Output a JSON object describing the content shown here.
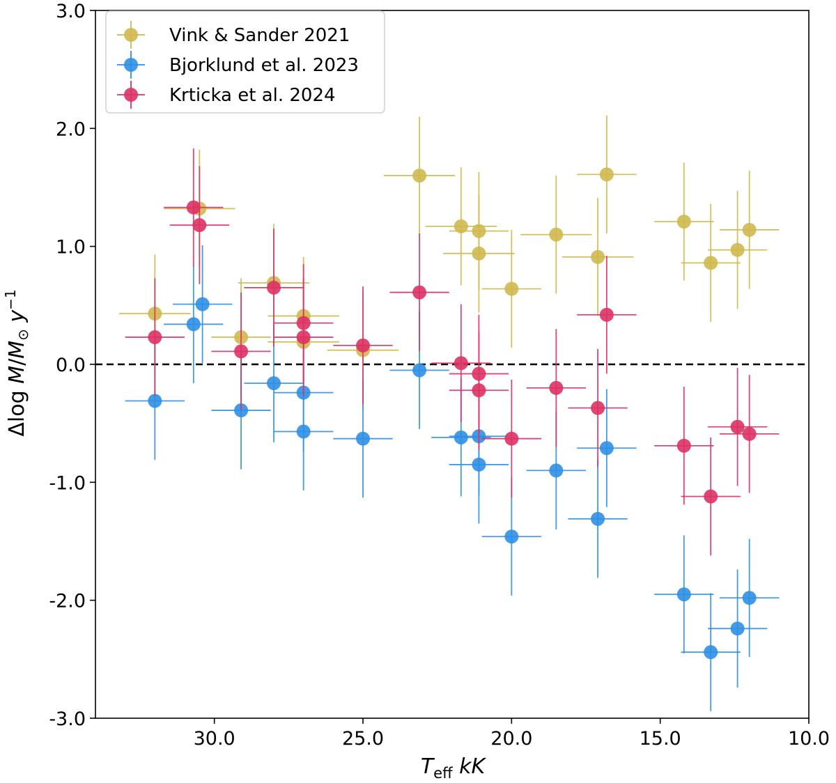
{
  "chart_data": {
    "type": "scatter",
    "title": "",
    "xlabel": {
      "main": "T",
      "sub": "eff",
      "unit": " kK"
    },
    "ylabel": {
      "prefix": "Δlog ",
      "mdot": "M",
      "slash": "/",
      "msun": "M",
      "sun_symbol": "⊙",
      "unit": " y",
      "exp": "−1"
    },
    "xlim": [
      34.0,
      10.0
    ],
    "ylim": [
      -3.0,
      3.0
    ],
    "x_ticks": [
      30.0,
      25.0,
      20.0,
      15.0,
      10.0
    ],
    "x_tick_labels": [
      "30.0",
      "25.0",
      "20.0",
      "15.0",
      "10.0"
    ],
    "y_ticks": [
      -3.0,
      -2.0,
      -1.0,
      0.0,
      1.0,
      2.0,
      3.0
    ],
    "y_tick_labels": [
      "-3.0",
      "-2.0",
      "-1.0",
      "0.0",
      "1.0",
      "2.0",
      "3.0"
    ],
    "reference_line": {
      "y": 0.0,
      "style": "dashed",
      "color": "#000000"
    },
    "legend_position": "upper-left",
    "series": [
      {
        "name": "Vink & Sander 2021",
        "color": "#cfb94f",
        "points": [
          {
            "x": 32.0,
            "y": 0.43,
            "xerr": 1.2,
            "yerr": 0.5
          },
          {
            "x": 30.5,
            "y": 1.32,
            "xerr": 1.2,
            "yerr": 0.5
          },
          {
            "x": 29.1,
            "y": 0.23,
            "xerr": 1.0,
            "yerr": 0.5
          },
          {
            "x": 28.0,
            "y": 0.69,
            "xerr": 1.2,
            "yerr": 0.5
          },
          {
            "x": 27.0,
            "y": 0.41,
            "xerr": 1.2,
            "yerr": 0.5
          },
          {
            "x": 27.0,
            "y": 0.19,
            "xerr": 1.2,
            "yerr": 0.5
          },
          {
            "x": 25.0,
            "y": 0.12,
            "xerr": 1.2,
            "yerr": 0.5
          },
          {
            "x": 23.1,
            "y": 1.6,
            "xerr": 1.2,
            "yerr": 0.5
          },
          {
            "x": 21.7,
            "y": 1.17,
            "xerr": 1.2,
            "yerr": 0.5
          },
          {
            "x": 21.1,
            "y": 1.13,
            "xerr": 1.0,
            "yerr": 0.5
          },
          {
            "x": 21.1,
            "y": 0.94,
            "xerr": 1.2,
            "yerr": 0.5
          },
          {
            "x": 20.0,
            "y": 0.64,
            "xerr": 1.0,
            "yerr": 0.5
          },
          {
            "x": 18.5,
            "y": 1.1,
            "xerr": 1.2,
            "yerr": 0.5
          },
          {
            "x": 17.1,
            "y": 0.91,
            "xerr": 1.2,
            "yerr": 0.5
          },
          {
            "x": 16.8,
            "y": 1.61,
            "xerr": 1.0,
            "yerr": 0.5
          },
          {
            "x": 14.2,
            "y": 1.21,
            "xerr": 1.0,
            "yerr": 0.5
          },
          {
            "x": 13.3,
            "y": 0.86,
            "xerr": 1.0,
            "yerr": 0.5
          },
          {
            "x": 12.4,
            "y": 0.97,
            "xerr": 1.0,
            "yerr": 0.5
          },
          {
            "x": 12.0,
            "y": 1.14,
            "xerr": 1.0,
            "yerr": 0.5
          }
        ]
      },
      {
        "name": "Bjorklund et al. 2023",
        "color": "#2f8fe3",
        "points": [
          {
            "x": 32.0,
            "y": -0.31,
            "xerr": 1.0,
            "yerr": 0.5
          },
          {
            "x": 30.7,
            "y": 0.34,
            "xerr": 1.0,
            "yerr": 0.5
          },
          {
            "x": 30.4,
            "y": 0.51,
            "xerr": 1.0,
            "yerr": 0.5
          },
          {
            "x": 29.1,
            "y": -0.39,
            "xerr": 1.0,
            "yerr": 0.5
          },
          {
            "x": 28.0,
            "y": -0.16,
            "xerr": 1.0,
            "yerr": 0.5
          },
          {
            "x": 27.0,
            "y": -0.24,
            "xerr": 1.0,
            "yerr": 0.5
          },
          {
            "x": 27.0,
            "y": -0.57,
            "xerr": 1.0,
            "yerr": 0.5
          },
          {
            "x": 25.0,
            "y": -0.63,
            "xerr": 1.0,
            "yerr": 0.5
          },
          {
            "x": 23.1,
            "y": -0.05,
            "xerr": 1.0,
            "yerr": 0.5
          },
          {
            "x": 21.7,
            "y": -0.62,
            "xerr": 1.0,
            "yerr": 0.5
          },
          {
            "x": 21.1,
            "y": -0.61,
            "xerr": 1.0,
            "yerr": 0.5
          },
          {
            "x": 21.1,
            "y": -0.85,
            "xerr": 1.0,
            "yerr": 0.5
          },
          {
            "x": 20.0,
            "y": -1.46,
            "xerr": 1.0,
            "yerr": 0.5
          },
          {
            "x": 18.5,
            "y": -0.9,
            "xerr": 1.0,
            "yerr": 0.5
          },
          {
            "x": 17.1,
            "y": -1.31,
            "xerr": 1.0,
            "yerr": 0.5
          },
          {
            "x": 16.8,
            "y": -0.71,
            "xerr": 1.0,
            "yerr": 0.5
          },
          {
            "x": 14.2,
            "y": -1.95,
            "xerr": 1.0,
            "yerr": 0.5
          },
          {
            "x": 13.3,
            "y": -2.44,
            "xerr": 1.0,
            "yerr": 0.5
          },
          {
            "x": 12.4,
            "y": -2.24,
            "xerr": 1.0,
            "yerr": 0.5
          },
          {
            "x": 12.0,
            "y": -1.98,
            "xerr": 1.0,
            "yerr": 0.5
          }
        ]
      },
      {
        "name": "Krticka et al. 2024",
        "color": "#dc3265",
        "points": [
          {
            "x": 32.0,
            "y": 0.23,
            "xerr": 1.0,
            "yerr": 0.5
          },
          {
            "x": 30.7,
            "y": 1.33,
            "xerr": 1.0,
            "yerr": 0.5
          },
          {
            "x": 30.5,
            "y": 1.18,
            "xerr": 1.0,
            "yerr": 0.5
          },
          {
            "x": 29.1,
            "y": 0.11,
            "xerr": 1.0,
            "yerr": 0.5
          },
          {
            "x": 28.0,
            "y": 0.65,
            "xerr": 1.0,
            "yerr": 0.5
          },
          {
            "x": 27.0,
            "y": 0.35,
            "xerr": 1.0,
            "yerr": 0.5
          },
          {
            "x": 27.0,
            "y": 0.23,
            "xerr": 1.0,
            "yerr": 0.5
          },
          {
            "x": 25.0,
            "y": 0.16,
            "xerr": 1.0,
            "yerr": 0.5
          },
          {
            "x": 23.1,
            "y": 0.61,
            "xerr": 1.0,
            "yerr": 0.5
          },
          {
            "x": 21.7,
            "y": 0.01,
            "xerr": 1.0,
            "yerr": 0.5
          },
          {
            "x": 21.1,
            "y": -0.08,
            "xerr": 1.0,
            "yerr": 0.5
          },
          {
            "x": 21.1,
            "y": -0.22,
            "xerr": 1.0,
            "yerr": 0.5
          },
          {
            "x": 20.0,
            "y": -0.63,
            "xerr": 1.0,
            "yerr": 0.5
          },
          {
            "x": 18.5,
            "y": -0.2,
            "xerr": 1.0,
            "yerr": 0.5
          },
          {
            "x": 17.1,
            "y": -0.37,
            "xerr": 1.0,
            "yerr": 0.5
          },
          {
            "x": 16.8,
            "y": 0.42,
            "xerr": 1.0,
            "yerr": 0.5
          },
          {
            "x": 14.2,
            "y": -0.69,
            "xerr": 1.0,
            "yerr": 0.5
          },
          {
            "x": 13.3,
            "y": -1.12,
            "xerr": 1.0,
            "yerr": 0.5
          },
          {
            "x": 12.4,
            "y": -0.53,
            "xerr": 1.0,
            "yerr": 0.5
          },
          {
            "x": 12.0,
            "y": -0.59,
            "xerr": 1.0,
            "yerr": 0.5
          }
        ]
      }
    ]
  }
}
